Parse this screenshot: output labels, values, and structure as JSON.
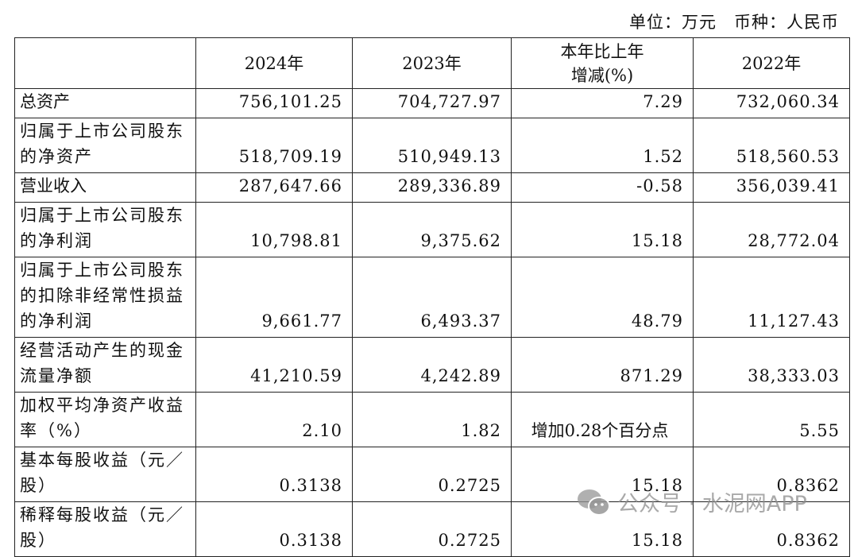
{
  "unit_note": "单位：万元　币种：人民币",
  "headers": [
    "",
    "2024年",
    "2023年",
    "本年比上年\n增减(%)",
    "2022年"
  ],
  "rows": [
    {
      "label": "总资产",
      "values": [
        "756,101.25",
        "704,727.97",
        "7.29",
        "732,060.34"
      ]
    },
    {
      "label": "归属于上市公司股东的净资产",
      "values": [
        "518,709.19",
        "510,949.13",
        "1.52",
        "518,560.53"
      ]
    },
    {
      "label": "营业收入",
      "values": [
        "287,647.66",
        "289,336.89",
        "-0.58",
        "356,039.41"
      ]
    },
    {
      "label": "归属于上市公司股东的净利润",
      "values": [
        "10,798.81",
        "9,375.62",
        "15.18",
        "28,772.04"
      ]
    },
    {
      "label": "归属于上市公司股东的扣除非经常性损益的净利润",
      "values": [
        "9,661.77",
        "6,493.37",
        "48.79",
        "11,127.43"
      ]
    },
    {
      "label": "经营活动产生的现金流量净额",
      "values": [
        "41,210.59",
        "4,242.89",
        "871.29",
        "38,333.03"
      ]
    },
    {
      "label": "加权平均净资产收益率（%）",
      "values": [
        "2.10",
        "1.82",
        "增加0.28个百分点",
        "5.55"
      ]
    },
    {
      "label": "基本每股收益（元／股）",
      "values": [
        "0.3138",
        "0.2725",
        "15.18",
        "0.8362"
      ]
    },
    {
      "label": "稀释每股收益（元／股）",
      "values": [
        "0.3138",
        "0.2725",
        "15.18",
        "0.8362"
      ]
    }
  ],
  "watermark": {
    "icon": "wechat-icon",
    "text": "公众号 · 水泥网APP"
  }
}
